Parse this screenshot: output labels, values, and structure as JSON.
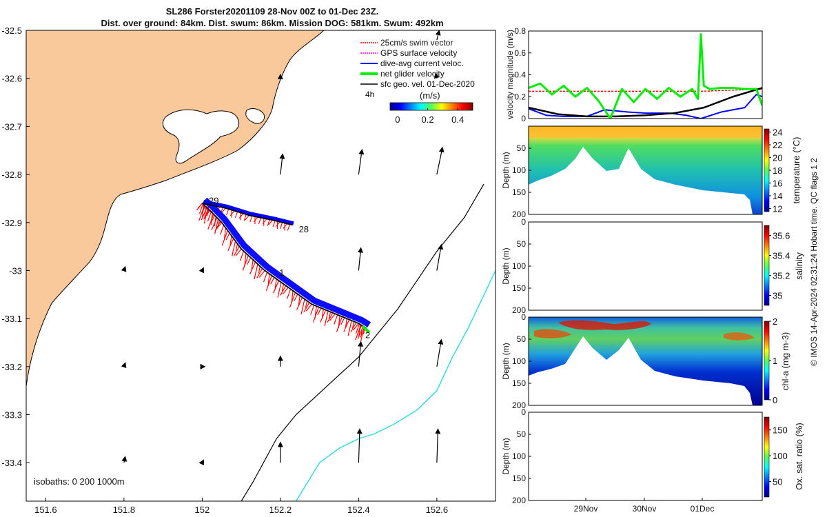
{
  "title": {
    "line1": "SL286 Forster20201109 28-Nov 00Z to 01-Dec 23Z.",
    "line2": "Dist. over ground: 84km. Dist. swum: 86km. Mission DOG: 581km. Swum: 492km"
  },
  "colors": {
    "land": "#f9c89b",
    "swim_vector": "#ff0000",
    "gps_velocity": "#ff00ff",
    "dive_avg": "#0000ff",
    "net_velocity": "#00ee00",
    "sfc_geo": "#000000",
    "isobath_200": "#000000",
    "isobath_1000": "#33dddd"
  },
  "chart_data": [
    {
      "id": "map",
      "type": "scatter",
      "title": "",
      "xlabel": "",
      "ylabel": "",
      "xlim": [
        151.55,
        152.75
      ],
      "ylim": [
        -33.48,
        -32.5
      ],
      "x_ticks": [
        151.6,
        151.8,
        152,
        152.2,
        152.4,
        152.6
      ],
      "x_tick_labels": [
        "151.6",
        "151.8",
        "152",
        "152.2",
        "152.4",
        "152.6"
      ],
      "y_ticks": [
        -32.5,
        -32.6,
        -32.7,
        -32.8,
        -32.9,
        -33,
        -33.1,
        -33.2,
        -33.3,
        -33.4
      ],
      "y_tick_labels": [
        "-32.5",
        "-32.6",
        "-32.7",
        "-32.8",
        "-32.9",
        "-33",
        "-33.1",
        "-33.2",
        "-33.3",
        "-33.4"
      ],
      "legend": {
        "placement": "top-right",
        "entries": [
          "25cm/s swim vector",
          "GPS surface velocity",
          "dive-avg current veloc.",
          "net glider velocity",
          "sfc geo. vel. 01-Dec-2020"
        ],
        "scale_label": "4h",
        "colorbar_label": "(m/s)",
        "colorbar_ticks": [
          "0",
          "0.2",
          "0.4"
        ],
        "colorbar_range": [
          -0.05,
          0.5
        ]
      },
      "track": {
        "x": [
          152.0,
          152.02,
          152.05,
          152.1,
          152.16,
          152.22,
          152.28,
          152.34,
          152.4,
          152.42
        ],
        "y": [
          -32.86,
          -32.875,
          -32.9,
          -32.955,
          -33.0,
          -33.035,
          -33.07,
          -33.09,
          -33.11,
          -33.12
        ]
      },
      "track_branch": {
        "x": [
          152.0,
          152.06,
          152.12,
          152.18,
          152.23
        ],
        "y": [
          -32.86,
          -32.87,
          -32.885,
          -32.895,
          -32.905
        ]
      },
      "day_labels": [
        {
          "text": "29",
          "x": 152.01,
          "y": -32.855
        },
        {
          "text": "28",
          "x": 152.24,
          "y": -32.915
        },
        {
          "text": "1",
          "x": 152.19,
          "y": -33.005
        },
        {
          "text": "2",
          "x": 152.41,
          "y": -33.135
        }
      ],
      "isobaths_label": "isobaths: 0   200  1000m",
      "isobath_200": {
        "x": [
          152.1,
          152.13,
          152.19,
          152.24,
          152.28,
          152.32,
          152.36,
          152.4,
          152.44,
          152.5,
          152.55,
          152.6,
          152.67,
          152.72
        ],
        "y": [
          -33.48,
          -33.44,
          -33.35,
          -33.3,
          -33.27,
          -33.24,
          -33.21,
          -33.18,
          -33.14,
          -33.08,
          -33.02,
          -32.96,
          -32.89,
          -32.82
        ]
      },
      "isobath_1000": {
        "x": [
          152.24,
          152.3,
          152.35,
          152.4,
          152.44,
          152.49,
          152.55,
          152.6,
          152.64,
          152.68,
          152.75
        ],
        "y": [
          -33.48,
          -33.4,
          -33.37,
          -33.35,
          -33.34,
          -33.32,
          -33.29,
          -33.25,
          -33.18,
          -33.12,
          -33.0
        ]
      },
      "geo_vectors": [
        {
          "x": 152.2,
          "y": -32.8,
          "u": 0.02,
          "v": 0.18
        },
        {
          "x": 152.4,
          "y": -32.8,
          "u": 0.03,
          "v": 0.22
        },
        {
          "x": 152.6,
          "y": -32.8,
          "u": 0.05,
          "v": 0.24
        },
        {
          "x": 152.6,
          "y": -32.52,
          "u": 0.02,
          "v": 0.08
        },
        {
          "x": 152.4,
          "y": -33.0,
          "u": 0.02,
          "v": 0.2
        },
        {
          "x": 152.6,
          "y": -33.0,
          "u": 0.04,
          "v": 0.23
        },
        {
          "x": 152.4,
          "y": -33.2,
          "u": 0.02,
          "v": 0.22
        },
        {
          "x": 152.6,
          "y": -33.2,
          "u": 0.04,
          "v": 0.24
        },
        {
          "x": 152.2,
          "y": -33.2,
          "u": 0.0,
          "v": 0.09
        },
        {
          "x": 152.2,
          "y": -33.4,
          "u": 0.0,
          "v": 0.18
        },
        {
          "x": 152.4,
          "y": -33.4,
          "u": 0.01,
          "v": 0.3
        },
        {
          "x": 152.6,
          "y": -33.4,
          "u": 0.01,
          "v": 0.3
        },
        {
          "x": 151.8,
          "y": -33.0,
          "u": 0.01,
          "v": 0.03
        },
        {
          "x": 152.0,
          "y": -33.0,
          "u": 0.01,
          "v": 0.02
        },
        {
          "x": 151.8,
          "y": -33.2,
          "u": 0.01,
          "v": 0.03
        },
        {
          "x": 152.0,
          "y": -33.2,
          "u": 0.02,
          "v": 0.0
        },
        {
          "x": 151.8,
          "y": -33.4,
          "u": 0.01,
          "v": 0.05
        },
        {
          "x": 152.0,
          "y": -33.4,
          "u": 0.01,
          "v": 0.02
        },
        {
          "x": 152.2,
          "y": -32.6,
          "u": 0.0,
          "v": 0.03
        },
        {
          "x": 152.6,
          "y": -32.6,
          "u": -0.01,
          "v": 0.04
        }
      ]
    },
    {
      "id": "velocity",
      "type": "line",
      "ylabel": "velocity magnitude (m/s)",
      "ylim": [
        0,
        0.8
      ],
      "y_ticks": [
        0,
        0.2,
        0.4,
        0.6,
        0.8
      ],
      "y_tick_labels": [
        "0",
        "0.2",
        "0.4",
        "0.6",
        "0.8"
      ],
      "xlim": [
        0,
        4
      ],
      "series": [
        {
          "name": "swim vector (red)",
          "t": [
            0,
            0.5,
            1,
            1.5,
            2,
            2.5,
            3,
            3.5,
            4
          ],
          "values": [
            0.25,
            0.25,
            0.25,
            0.25,
            0.25,
            0.25,
            0.25,
            0.26,
            0.27
          ]
        },
        {
          "name": "dive-avg current (blue)",
          "t": [
            0,
            0.3,
            0.6,
            1.0,
            1.3,
            1.7,
            2.0,
            2.4,
            2.7,
            2.95,
            3.3,
            3.7,
            3.9,
            4.0
          ],
          "values": [
            0.09,
            0.03,
            0.02,
            0.02,
            0.08,
            0.06,
            0.05,
            0.05,
            0.03,
            0.0,
            0.06,
            0.1,
            0.22,
            0.2
          ]
        },
        {
          "name": "sfc geo vel (black)",
          "t": [
            0,
            0.5,
            1,
            1.5,
            2,
            2.5,
            3,
            3.5,
            4
          ],
          "values": [
            0.1,
            0.04,
            0.02,
            0.02,
            0.03,
            0.05,
            0.1,
            0.2,
            0.28
          ]
        },
        {
          "name": "net glider velocity (green)",
          "t": [
            0,
            0.2,
            0.4,
            0.6,
            0.8,
            1.0,
            1.2,
            1.4,
            1.6,
            1.8,
            2.0,
            2.2,
            2.4,
            2.6,
            2.8,
            2.9,
            2.95,
            3.0,
            3.1,
            3.3,
            3.5,
            3.7,
            3.9,
            4.0
          ],
          "values": [
            0.28,
            0.32,
            0.22,
            0.3,
            0.2,
            0.28,
            0.16,
            0.0,
            0.27,
            0.15,
            0.27,
            0.18,
            0.28,
            0.2,
            0.27,
            0.18,
            0.77,
            0.3,
            0.27,
            0.28,
            0.28,
            0.27,
            0.27,
            0.12
          ]
        }
      ]
    },
    {
      "id": "temperature",
      "type": "heatmap",
      "ylabel": "Depth (m)",
      "colorbar_label": "temperature (°C)",
      "ylim": [
        0,
        200
      ],
      "y_tick_labels": [
        "50",
        "100",
        "150",
        "200"
      ],
      "colorbar_ticks": [
        "12",
        "14",
        "16",
        "18",
        "20",
        "22",
        "24"
      ],
      "colorbar_range": [
        11.5,
        24.5
      ]
    },
    {
      "id": "salinity",
      "type": "heatmap",
      "ylabel": "Depth (m)",
      "colorbar_label": "salinity",
      "ylim": [
        0,
        200
      ],
      "y_tick_labels": [
        "0",
        "50",
        "100",
        "150",
        "200"
      ],
      "colorbar_ticks": [
        "35",
        "35.2",
        "35.4",
        "35.6"
      ],
      "colorbar_range": [
        34.9,
        35.7
      ]
    },
    {
      "id": "chla",
      "type": "heatmap",
      "ylabel": "Depth (m)",
      "colorbar_label": "chl-a (mg m-3)",
      "ylim": [
        0,
        200
      ],
      "y_tick_labels": [
        "0",
        "50",
        "100",
        "150",
        "200"
      ],
      "colorbar_ticks": [
        "0",
        "1",
        "2"
      ],
      "colorbar_range": [
        0,
        2
      ]
    },
    {
      "id": "oxygen",
      "type": "heatmap",
      "ylabel": "Depth (m)",
      "colorbar_label": "Ox. sat. ratio (%)",
      "ylim": [
        0,
        200
      ],
      "y_tick_labels": [
        "0",
        "50",
        "100",
        "150",
        "200"
      ],
      "colorbar_ticks": [
        "50",
        "100",
        "150"
      ],
      "colorbar_range": [
        20,
        175
      ],
      "x_tick_labels": [
        "29Nov",
        "30Nov",
        "01Dec"
      ]
    }
  ],
  "footer": "© IMOS 14-Apr-2024 02:31:24 Hobart time. QC flags 1  2"
}
